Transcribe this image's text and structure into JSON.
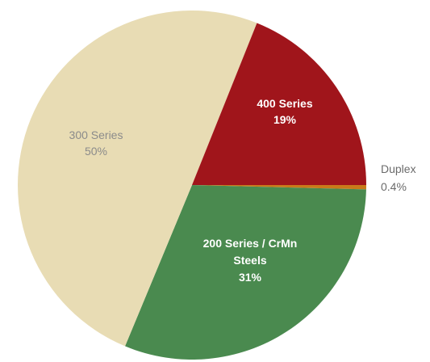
{
  "chart_data": {
    "type": "pie",
    "start_angle_deg": 0,
    "direction": "clockwise",
    "slices": [
      {
        "label": "Duplex",
        "value": 0.4,
        "value_label": "0.4%",
        "color": "#c97a1a",
        "label_color": "#6b6b6b",
        "label_style": "normal",
        "label_lines": [
          "Duplex"
        ]
      },
      {
        "label": "200 Series / CrMn Steels",
        "value": 31,
        "value_label": "31%",
        "color": "#4a8a4f",
        "label_color": "#ffffff",
        "label_style": "bold",
        "label_lines": [
          "200 Series / CrMn",
          "Steels"
        ]
      },
      {
        "label": "300 Series",
        "value": 50,
        "value_label": "50%",
        "color": "#e8dcb4",
        "label_color": "#8b8b8b",
        "label_style": "normal",
        "label_lines": [
          "300 Series"
        ]
      },
      {
        "label": "400 Series",
        "value": 19,
        "value_label": "19%",
        "color": "#a0151b",
        "label_color": "#ffffff",
        "label_style": "bold",
        "label_lines": [
          "400 Series"
        ]
      }
    ]
  }
}
